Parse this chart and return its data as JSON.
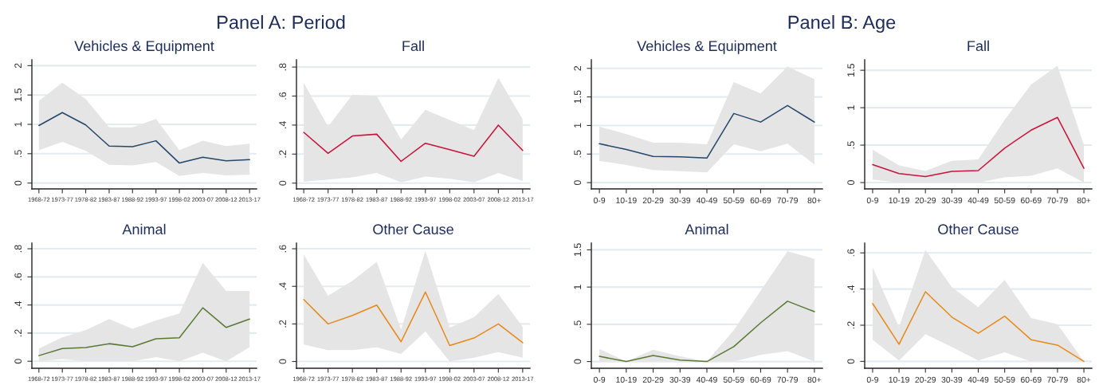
{
  "chart_data": [
    {
      "type": "line",
      "title": "Vehicles & Equipment",
      "annotations": [
        "Panel A: Period"
      ],
      "categories": [
        "1968-72",
        "1973-77",
        "1978-82",
        "1983-87",
        "1988-92",
        "1993-97",
        "1998-02",
        "2003-07",
        "2008-12",
        "2013-17"
      ],
      "ylim": [
        -0.1,
        2.1
      ],
      "yticks": [
        0,
        {
          "value": 0.5,
          "label": ".5"
        },
        1,
        1.5,
        2
      ],
      "grid": "y",
      "series": [
        {
          "color": "#24476b",
          "values": [
            0.98,
            1.2,
            0.99,
            0.63,
            0.62,
            0.72,
            0.34,
            0.44,
            0.38,
            0.4
          ],
          "lower": [
            0.56,
            0.7,
            0.55,
            0.31,
            0.3,
            0.36,
            0.12,
            0.17,
            0.13,
            0.14
          ],
          "upper": [
            1.4,
            1.71,
            1.43,
            0.95,
            0.95,
            1.09,
            0.56,
            0.72,
            0.63,
            0.67
          ]
        }
      ]
    },
    {
      "type": "line",
      "title": "Fall",
      "categories": [
        "1968-72",
        "1973-77",
        "1978-82",
        "1983-87",
        "1988-92",
        "1993-97",
        "1998-02",
        "2003-07",
        "2008-12",
        "2013-17"
      ],
      "ylim": [
        -0.04,
        0.85
      ],
      "yticks": [
        0,
        {
          "value": 0.2,
          "label": ".2"
        },
        {
          "value": 0.4,
          "label": ".4"
        },
        {
          "value": 0.6,
          "label": ".6"
        },
        {
          "value": 0.8,
          "label": ".8"
        }
      ],
      "grid": "y",
      "series": [
        {
          "color": "#c8143c",
          "values": [
            0.35,
            0.205,
            0.325,
            0.337,
            0.15,
            0.275,
            0.23,
            0.185,
            0.4,
            0.225
          ],
          "lower": [
            0.01,
            0.025,
            0.04,
            0.07,
            0.005,
            0.045,
            0.03,
            0.005,
            0.07,
            0.015
          ],
          "upper": [
            0.69,
            0.39,
            0.61,
            0.6,
            0.3,
            0.505,
            0.435,
            0.365,
            0.725,
            0.44
          ]
        }
      ]
    },
    {
      "type": "line",
      "title": "Vehicles & Equipment",
      "annotations": [
        "Panel B: Age"
      ],
      "categories": [
        "0-9",
        "10-19",
        "20-29",
        "30-39",
        "40-49",
        "50-59",
        "60-69",
        "70-79",
        "80+"
      ],
      "ylim": [
        -0.11,
        2.15
      ],
      "yticks": [
        0,
        {
          "value": 0.5,
          "label": ".5"
        },
        1,
        1.5,
        2
      ],
      "grid": "y",
      "series": [
        {
          "color": "#24476b",
          "values": [
            0.68,
            0.58,
            0.46,
            0.45,
            0.43,
            1.21,
            1.06,
            1.35,
            1.06
          ],
          "lower": [
            0.38,
            0.31,
            0.22,
            0.2,
            0.18,
            0.67,
            0.55,
            0.68,
            0.32
          ],
          "upper": [
            0.98,
            0.85,
            0.7,
            0.7,
            0.67,
            1.76,
            1.56,
            2.03,
            1.81
          ]
        }
      ]
    },
    {
      "type": "line",
      "title": "Fall",
      "categories": [
        "0-9",
        "10-19",
        "20-29",
        "30-39",
        "40-49",
        "50-59",
        "60-69",
        "70-79",
        "80+"
      ],
      "ylim": [
        -0.085,
        1.64
      ],
      "yticks": [
        0,
        {
          "value": 0.5,
          "label": ".5"
        },
        1,
        1.5
      ],
      "grid": "y",
      "series": [
        {
          "color": "#c8143c",
          "values": [
            0.24,
            0.12,
            0.08,
            0.15,
            0.16,
            0.46,
            0.7,
            0.87,
            0.19
          ],
          "lower": [
            0.04,
            0.0,
            0.0,
            0.0,
            0.0,
            0.07,
            0.09,
            0.19,
            0.0
          ],
          "upper": [
            0.44,
            0.23,
            0.155,
            0.29,
            0.31,
            0.84,
            1.31,
            1.56,
            0.5
          ]
        }
      ]
    },
    {
      "type": "line",
      "title": "Animal",
      "categories": [
        "1968-72",
        "1973-77",
        "1978-82",
        "1983-87",
        "1988-92",
        "1993-97",
        "1998-02",
        "2003-07",
        "2008-12",
        "2013-17"
      ],
      "ylim": [
        -0.05,
        0.84
      ],
      "yticks": [
        0,
        {
          "value": 0.2,
          "label": ".2"
        },
        {
          "value": 0.4,
          "label": ".4"
        },
        {
          "value": 0.6,
          "label": ".6"
        },
        {
          "value": 0.8,
          "label": ".8"
        }
      ],
      "grid": "y",
      "series": [
        {
          "color": "#5a7a34",
          "values": [
            0.04,
            0.09,
            0.097,
            0.125,
            0.103,
            0.16,
            0.167,
            0.38,
            0.24,
            0.3
          ],
          "lower": [
            0.0,
            0.015,
            0.0,
            0.0,
            0.0,
            0.03,
            0.0,
            0.06,
            0.0,
            0.1
          ],
          "upper": [
            0.09,
            0.17,
            0.22,
            0.3,
            0.23,
            0.29,
            0.34,
            0.7,
            0.5,
            0.5
          ]
        }
      ]
    },
    {
      "type": "line",
      "title": "Other Cause",
      "categories": [
        "1968-72",
        "1973-77",
        "1978-82",
        "1983-87",
        "1988-92",
        "1993-97",
        "1998-02",
        "2003-07",
        "2008-12",
        "2013-17"
      ],
      "ylim": [
        -0.036,
        0.63
      ],
      "yticks": [
        0,
        {
          "value": 0.2,
          "label": ".2"
        },
        {
          "value": 0.4,
          "label": ".4"
        },
        {
          "value": 0.6,
          "label": ".6"
        }
      ],
      "grid": "y",
      "series": [
        {
          "color": "#e8891a",
          "values": [
            0.33,
            0.2,
            0.245,
            0.3,
            0.105,
            0.37,
            0.085,
            0.125,
            0.2,
            0.1
          ],
          "lower": [
            0.09,
            0.06,
            0.06,
            0.075,
            0.04,
            0.16,
            0.0,
            0.02,
            0.05,
            0.02
          ],
          "upper": [
            0.57,
            0.35,
            0.43,
            0.53,
            0.17,
            0.59,
            0.18,
            0.235,
            0.36,
            0.185
          ]
        }
      ]
    },
    {
      "type": "line",
      "title": "Animal",
      "categories": [
        "0-9",
        "10-19",
        "20-29",
        "30-39",
        "40-49",
        "50-59",
        "60-69",
        "70-79",
        "80+"
      ],
      "ylim": [
        -0.09,
        1.59
      ],
      "yticks": [
        0,
        {
          "value": 0.5,
          "label": ".5"
        },
        1,
        1.5
      ],
      "grid": "y",
      "series": [
        {
          "color": "#5a7a34",
          "values": [
            0.07,
            0.0,
            0.08,
            0.02,
            0.0,
            0.2,
            0.52,
            0.81,
            0.67
          ],
          "lower": [
            0,
            0,
            0,
            0,
            0,
            0,
            0.09,
            0.14,
            0.0
          ],
          "upper": [
            0.17,
            0.0,
            0.16,
            0.07,
            0.0,
            0.42,
            0.95,
            1.48,
            1.38
          ]
        }
      ]
    },
    {
      "type": "line",
      "title": "Other Cause",
      "categories": [
        "0-9",
        "10-19",
        "20-29",
        "30-39",
        "40-49",
        "50-59",
        "60-69",
        "70-79",
        "80+"
      ],
      "ylim": [
        -0.038,
        0.654
      ],
      "yticks": [
        0,
        {
          "value": 0.2,
          "label": ".2"
        },
        {
          "value": 0.4,
          "label": ".4"
        },
        {
          "value": 0.6,
          "label": ".6"
        }
      ],
      "grid": "y",
      "series": [
        {
          "color": "#e8891a",
          "values": [
            0.32,
            0.095,
            0.385,
            0.245,
            0.155,
            0.25,
            0.12,
            0.09,
            0.0
          ],
          "lower": [
            0.12,
            0.005,
            0.15,
            0.08,
            0.005,
            0.05,
            0.0,
            0.0,
            0.0
          ],
          "upper": [
            0.52,
            0.19,
            0.615,
            0.41,
            0.3,
            0.45,
            0.24,
            0.205,
            0.0
          ]
        }
      ]
    }
  ]
}
